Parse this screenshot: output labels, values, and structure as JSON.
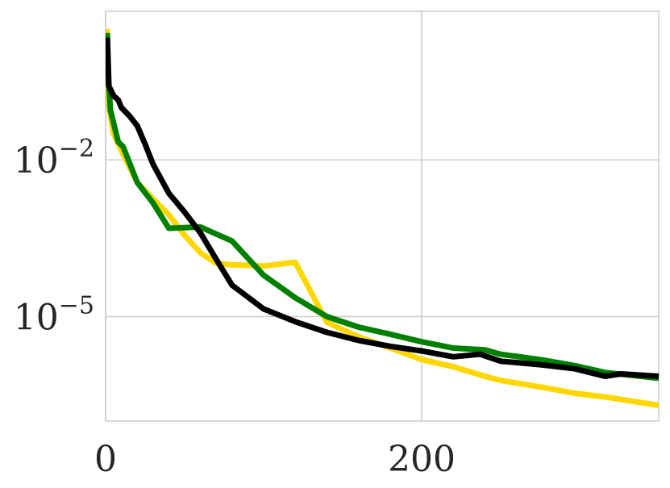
{
  "chart_data": {
    "type": "line",
    "ylog": true,
    "grid": true,
    "xlim": [
      0,
      350
    ],
    "xticks": [
      0,
      200
    ],
    "ylim": [
      1e-07,
      7
    ],
    "yticks": [
      {
        "value": 0.01,
        "label": "10−2"
      },
      {
        "value": 1e-05,
        "label": "10−5"
      }
    ],
    "series": [
      {
        "color": "#ffd700",
        "x": [
          1,
          2,
          5,
          10,
          20,
          30,
          40,
          50,
          60,
          70,
          80,
          100,
          120,
          140,
          160,
          180,
          200,
          220,
          240,
          250,
          275,
          297,
          316,
          350
        ],
        "values": [
          3.2,
          0.11,
          0.032,
          0.015,
          0.0037,
          0.0018,
          0.00089,
          0.00036,
          0.000166,
          0.000105,
          9.8e-05,
          9.3e-05,
          0.00011,
          7.8e-06,
          4.1e-06,
          2.5e-06,
          1.5e-06,
          1.1e-06,
          7.2e-07,
          6e-07,
          4.5e-07,
          3.4e-07,
          2.9e-07,
          2e-07
        ]
      },
      {
        "color": "#008000",
        "x": [
          1,
          2,
          3,
          8,
          11,
          20,
          30,
          40,
          60,
          80,
          100,
          120,
          140,
          160,
          180,
          200,
          220,
          240,
          250,
          275,
          297,
          316,
          350
        ],
        "values": [
          2.7,
          0.32,
          0.09,
          0.022,
          0.018,
          0.0037,
          0.0015,
          0.00049,
          0.00052,
          0.00028,
          6.2e-05,
          2.3e-05,
          1e-05,
          6.3e-06,
          4.6e-06,
          3.3e-06,
          2.5e-06,
          2.3e-06,
          1.9e-06,
          1.5e-06,
          1.15e-06,
          8.5e-07,
          6.6e-07
        ]
      },
      {
        "color": "#000000",
        "x": [
          1,
          2,
          5,
          8,
          10,
          15,
          20,
          25,
          30,
          40,
          50,
          60,
          70,
          80,
          100,
          120,
          140,
          160,
          180,
          200,
          220,
          237,
          250,
          275,
          297,
          316,
          326,
          350
        ],
        "values": [
          2.2,
          0.26,
          0.17,
          0.14,
          0.1,
          0.07,
          0.045,
          0.02,
          0.0083,
          0.0023,
          0.001,
          0.0004,
          0.000125,
          4e-05,
          1.4e-05,
          8e-06,
          5e-06,
          3.5e-06,
          2.7e-06,
          2.2e-06,
          1.7e-06,
          1.9e-06,
          1.4e-06,
          1.2e-06,
          1e-06,
          7.2e-07,
          8e-07,
          7.2e-07
        ]
      }
    ]
  }
}
